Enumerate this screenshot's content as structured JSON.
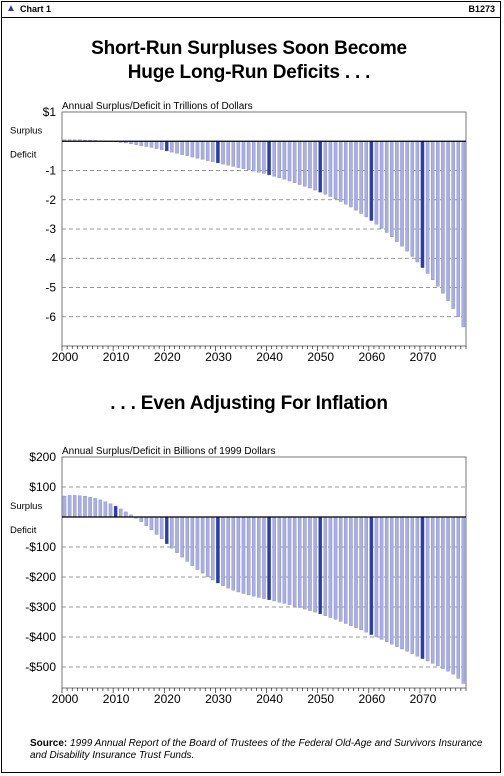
{
  "window": {
    "title": "Chart 1",
    "code": "B1273"
  },
  "heading1_line1": "Short-Run Surpluses Soon Become",
  "heading1_line2": "Huge Long-Run Deficits . . .",
  "heading2": ". . . Even Adjusting For Inflation",
  "source": {
    "label": "Source:",
    "text": "1999 Annual Report of the Board of Trustees of the Federal Old-Age and Survivors Insurance and Disability Insurance Trust Funds."
  },
  "colors": {
    "bar": "#a9aee3",
    "bar_dark": "#2a3db0",
    "grid": "#777777"
  },
  "chart_data": [
    {
      "type": "bar",
      "title": "Annual Surplus/Deficit in Trillions of Dollars",
      "side_labels": {
        "above": "Surplus",
        "below": "Deficit"
      },
      "ylim": [
        -7,
        1
      ],
      "yticks": [
        1,
        0,
        -1,
        -2,
        -3,
        -4,
        -5,
        -6
      ],
      "ytick_labels": [
        "$1",
        "",
        "-1",
        "-2",
        "-3",
        "-4",
        "-5",
        "-6"
      ],
      "xticks": [
        2000,
        2010,
        2020,
        2030,
        2040,
        2050,
        2060,
        2070
      ],
      "x_start": 2000,
      "values": [
        0.05,
        0.05,
        0.05,
        0.05,
        0.04,
        0.04,
        0.03,
        0.02,
        0.01,
        0.0,
        -0.02,
        -0.04,
        -0.06,
        -0.09,
        -0.12,
        -0.15,
        -0.18,
        -0.21,
        -0.25,
        -0.29,
        -0.33,
        -0.37,
        -0.41,
        -0.46,
        -0.5,
        -0.54,
        -0.58,
        -0.62,
        -0.66,
        -0.7,
        -0.74,
        -0.78,
        -0.82,
        -0.86,
        -0.9,
        -0.94,
        -0.98,
        -1.02,
        -1.06,
        -1.1,
        -1.15,
        -1.2,
        -1.25,
        -1.3,
        -1.36,
        -1.42,
        -1.48,
        -1.54,
        -1.6,
        -1.67,
        -1.74,
        -1.81,
        -1.89,
        -1.97,
        -2.06,
        -2.15,
        -2.25,
        -2.36,
        -2.47,
        -2.59,
        -2.71,
        -2.84,
        -2.98,
        -3.12,
        -3.27,
        -3.43,
        -3.59,
        -3.76,
        -3.94,
        -4.13,
        -4.32,
        -4.52,
        -4.74,
        -4.96,
        -5.2,
        -5.45,
        -5.72,
        -6.0,
        -6.35
      ]
    },
    {
      "type": "bar",
      "title": "Annual Surplus/Deficit in Billions of 1999 Dollars",
      "side_labels": {
        "above": "Surplus",
        "below": "Deficit"
      },
      "ylim": [
        -570,
        200
      ],
      "yticks": [
        200,
        100,
        0,
        -100,
        -200,
        -300,
        -400,
        -500
      ],
      "ytick_labels": [
        "$200",
        "$100",
        "",
        "-$100",
        "-$200",
        "-$300",
        "-$400",
        "-$500"
      ],
      "xticks": [
        2000,
        2010,
        2020,
        2030,
        2040,
        2050,
        2060,
        2070
      ],
      "x_start": 2000,
      "values": [
        70,
        72,
        72,
        71,
        69,
        66,
        62,
        57,
        51,
        44,
        36,
        27,
        17,
        7,
        -4,
        -16,
        -29,
        -43,
        -58,
        -73,
        -89,
        -104,
        -119,
        -134,
        -148,
        -162,
        -175,
        -187,
        -199,
        -210,
        -220,
        -229,
        -237,
        -244,
        -250,
        -255,
        -260,
        -264,
        -268,
        -272,
        -276,
        -280,
        -284,
        -288,
        -292,
        -297,
        -302,
        -307,
        -312,
        -317,
        -323,
        -329,
        -335,
        -341,
        -348,
        -355,
        -362,
        -369,
        -376,
        -384,
        -392,
        -400,
        -408,
        -416,
        -424,
        -432,
        -440,
        -448,
        -456,
        -464,
        -472,
        -480,
        -488,
        -496,
        -505,
        -514,
        -524,
        -538,
        -555
      ]
    }
  ]
}
